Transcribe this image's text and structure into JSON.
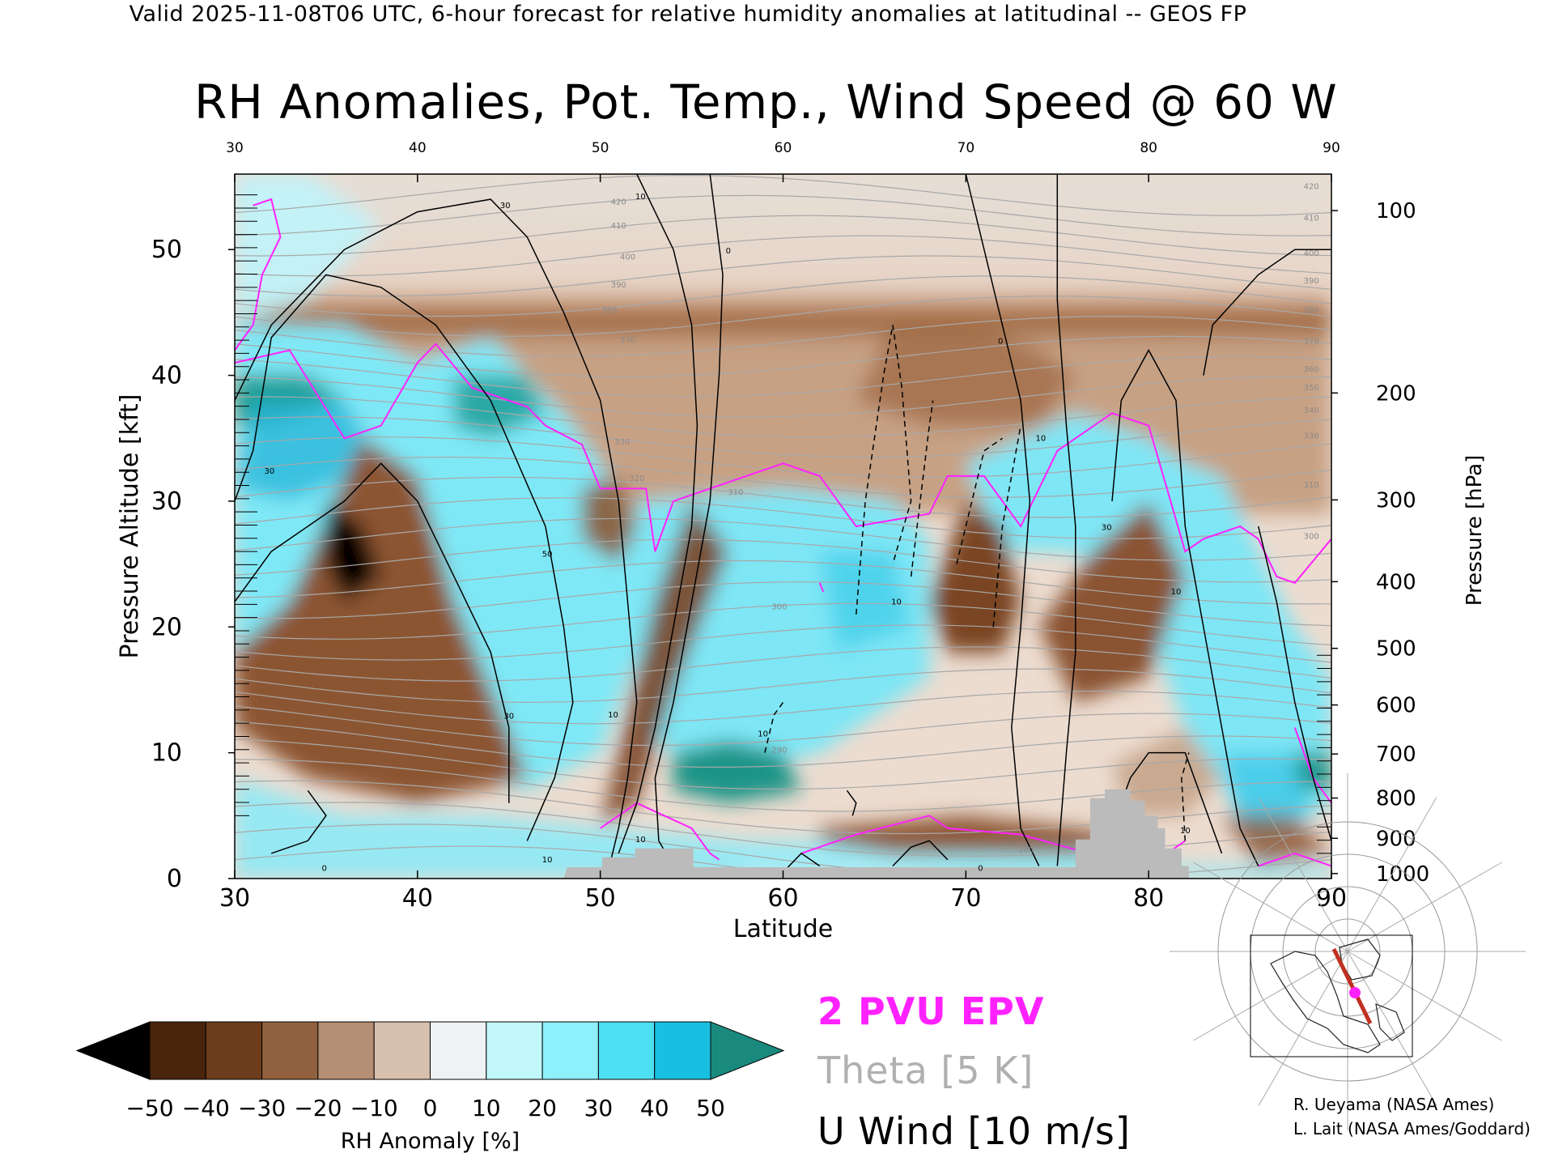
{
  "header": {
    "top_title": "Valid 2025-11-08T06 UTC, 6-hour forecast for relative humidity anomalies at latitudinal -- GEOS FP",
    "main_title": "RH Anomalies, Pot. Temp., Wind Speed @ 60 W"
  },
  "chart_data": {
    "type": "heatmap",
    "title": "RH Anomalies, Pot. Temp., Wind Speed @ 60 W",
    "xlabel": "Latitude",
    "ylabel": "Pressure Altitude [kft]",
    "y2label": "Pressure [hPa]",
    "xlim": [
      30,
      90
    ],
    "ylim": [
      0,
      56
    ],
    "x_ticks": [
      30,
      40,
      50,
      60,
      70,
      80,
      90
    ],
    "x_top_ticks": [
      30,
      40,
      50,
      60,
      70,
      80,
      90
    ],
    "y_ticks": [
      0,
      10,
      20,
      30,
      40,
      50
    ],
    "pressure_ticks": [
      {
        "hpa": 100,
        "kft": 53.1
      },
      {
        "hpa": 200,
        "kft": 38.6
      },
      {
        "hpa": 300,
        "kft": 30.1
      },
      {
        "hpa": 400,
        "kft": 23.6
      },
      {
        "hpa": 500,
        "kft": 18.3
      },
      {
        "hpa": 600,
        "kft": 13.8
      },
      {
        "hpa": 700,
        "kft": 9.9
      },
      {
        "hpa": 800,
        "kft": 6.4
      },
      {
        "hpa": 900,
        "kft": 3.2
      },
      {
        "hpa": 1000,
        "kft": 0.4
      }
    ],
    "colorbar": {
      "label": "RH Anomaly [%]",
      "ticks": [
        -50,
        -40,
        -30,
        -20,
        -10,
        0,
        10,
        20,
        30,
        40,
        50
      ],
      "colors": [
        "#000000",
        "#4a250c",
        "#6d3c1c",
        "#91603e",
        "#b58f73",
        "#d8c0ae",
        "#eef2f2",
        "#c2f8fc",
        "#8df0fa",
        "#4ddff4",
        "#18bfe0",
        "#0a95b8",
        "#1a8a7e"
      ]
    },
    "legend": {
      "epv": "2 PVU EPV",
      "theta": "Theta [5 K]",
      "wind": "U Wind [10 m/s]"
    },
    "theta_labels": [
      {
        "text": "420",
        "lat": 88.9,
        "kft": 54.8
      },
      {
        "text": "410",
        "lat": 88.9,
        "kft": 52.3
      },
      {
        "text": "400",
        "lat": 88.9,
        "kft": 49.5
      },
      {
        "text": "390",
        "lat": 88.9,
        "kft": 47.3
      },
      {
        "text": "380",
        "lat": 88.9,
        "kft": 45.0
      },
      {
        "text": "370",
        "lat": 88.9,
        "kft": 42.5
      },
      {
        "text": "360",
        "lat": 88.9,
        "kft": 40.3
      },
      {
        "text": "350",
        "lat": 88.9,
        "kft": 38.8
      },
      {
        "text": "340",
        "lat": 88.9,
        "kft": 37.0
      },
      {
        "text": "330",
        "lat": 88.9,
        "kft": 35.0
      },
      {
        "text": "310",
        "lat": 88.9,
        "kft": 31.1
      },
      {
        "text": "300",
        "lat": 88.9,
        "kft": 27.0
      },
      {
        "text": "420",
        "lat": 51.0,
        "kft": 53.6
      },
      {
        "text": "410",
        "lat": 51.0,
        "kft": 51.7
      },
      {
        "text": "400",
        "lat": 51.5,
        "kft": 49.2
      },
      {
        "text": "390",
        "lat": 51.0,
        "kft": 47.0
      },
      {
        "text": "380",
        "lat": 50.5,
        "kft": 45.0
      },
      {
        "text": "370",
        "lat": 51.5,
        "kft": 42.6
      },
      {
        "text": "330",
        "lat": 51.2,
        "kft": 34.5
      },
      {
        "text": "320",
        "lat": 52.0,
        "kft": 31.6
      },
      {
        "text": "310",
        "lat": 57.4,
        "kft": 30.5
      },
      {
        "text": "300",
        "lat": 59.8,
        "kft": 21.4
      },
      {
        "text": "290",
        "lat": 59.8,
        "kft": 10.0
      },
      {
        "text": "280",
        "lat": 73.3,
        "kft": 2.1
      }
    ],
    "wind_labels": [
      {
        "text": "30",
        "lat": 44.8,
        "kft": 53.3
      },
      {
        "text": "10",
        "lat": 52.2,
        "kft": 54.0
      },
      {
        "text": "0",
        "lat": 57.0,
        "kft": 49.7
      },
      {
        "text": "0",
        "lat": 71.9,
        "kft": 42.5
      },
      {
        "text": "30",
        "lat": 31.9,
        "kft": 32.2
      },
      {
        "text": "50",
        "lat": 47.1,
        "kft": 25.6
      },
      {
        "text": "30",
        "lat": 45.0,
        "kft": 12.7
      },
      {
        "text": "10",
        "lat": 50.7,
        "kft": 12.8
      },
      {
        "text": "10",
        "lat": 74.1,
        "kft": 34.8
      },
      {
        "text": "10",
        "lat": 66.2,
        "kft": 21.8
      },
      {
        "text": "10",
        "lat": 58.9,
        "kft": 11.3
      },
      {
        "text": "30",
        "lat": 77.7,
        "kft": 27.7
      },
      {
        "text": "10",
        "lat": 81.5,
        "kft": 22.6
      },
      {
        "text": "10",
        "lat": 47.1,
        "kft": 1.3
      },
      {
        "text": "10",
        "lat": 52.2,
        "kft": 2.9
      },
      {
        "text": "0",
        "lat": 34.9,
        "kft": 0.6
      },
      {
        "text": "0",
        "lat": 70.8,
        "kft": 0.6
      },
      {
        "text": "10",
        "lat": 82.0,
        "kft": 3.6
      }
    ],
    "terrain": [
      [
        48,
        0.0
      ],
      [
        48.2,
        0.9
      ],
      [
        50.1,
        0.9
      ],
      [
        50.1,
        1.7
      ],
      [
        51.9,
        1.7
      ],
      [
        51.9,
        2.4
      ],
      [
        55.1,
        2.4
      ],
      [
        55.1,
        0.9
      ],
      [
        76.0,
        0.9
      ],
      [
        76.0,
        3.1
      ],
      [
        76.8,
        3.1
      ],
      [
        76.8,
        6.4
      ],
      [
        77.6,
        6.4
      ],
      [
        77.6,
        7.1
      ],
      [
        79.0,
        7.1
      ],
      [
        79.0,
        6.2
      ],
      [
        79.8,
        6.2
      ],
      [
        79.8,
        5.0
      ],
      [
        80.5,
        5.0
      ],
      [
        80.5,
        4.0
      ],
      [
        80.9,
        4.0
      ],
      [
        80.9,
        2.4
      ],
      [
        81.8,
        2.4
      ],
      [
        81.8,
        1.0
      ],
      [
        82.2,
        1.0
      ],
      [
        82.2,
        0.0
      ]
    ]
  },
  "credits": {
    "line1": "R. Ueyama (NASA Ames)",
    "line2": "L. Lait (NASA Ames/Goddard)"
  },
  "colors": {
    "epv": "#ff22ff",
    "theta": "#a8a8a8",
    "terrain": "#bbbbbb",
    "wind": "#000000"
  }
}
